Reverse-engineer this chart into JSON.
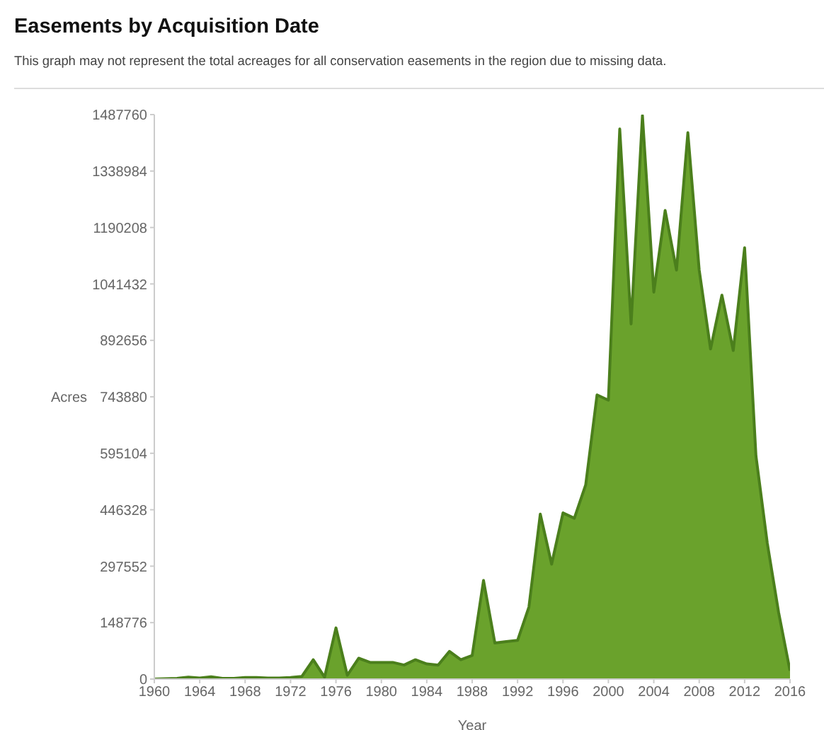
{
  "chart_data": {
    "type": "area",
    "title": "Easements by Acquisition Date",
    "subtitle": "This graph may not represent the total acreages for all conservation easements in the region due to missing data.",
    "xlabel": "Year",
    "ylabel": "Acres",
    "x": [
      1960,
      1961,
      1962,
      1963,
      1964,
      1965,
      1966,
      1967,
      1968,
      1969,
      1970,
      1971,
      1972,
      1973,
      1974,
      1975,
      1976,
      1977,
      1978,
      1979,
      1980,
      1981,
      1982,
      1983,
      1984,
      1985,
      1986,
      1987,
      1988,
      1989,
      1990,
      1991,
      1992,
      1993,
      1994,
      1995,
      1996,
      1997,
      1998,
      1999,
      2000,
      2001,
      2002,
      2003,
      2004,
      2005,
      2006,
      2007,
      2008,
      2009,
      2010,
      2011,
      2012,
      2013,
      2014,
      2015,
      2016
    ],
    "series": [
      {
        "color": "#6aa22c",
        "values": [
          0,
          1000,
          2000,
          5000,
          3000,
          6000,
          2000,
          2000,
          4000,
          4000,
          3000,
          3000,
          4000,
          7000,
          51000,
          5000,
          135000,
          10000,
          55000,
          44000,
          44000,
          44000,
          37000,
          51000,
          40000,
          37000,
          73000,
          51000,
          62000,
          260000,
          95000,
          99000,
          102000,
          190000,
          435000,
          303000,
          438000,
          424000,
          512000,
          749000,
          735000,
          1450000,
          936000,
          1485000,
          1020000,
          1235000,
          1078000,
          1440000,
          1078000,
          870000,
          1012000,
          866000,
          1137000,
          588000,
          358000,
          175000,
          22000
        ]
      }
    ],
    "xlim": [
      1960,
      2016
    ],
    "xticks": [
      1960,
      1964,
      1968,
      1972,
      1976,
      1980,
      1984,
      1988,
      1992,
      1996,
      2000,
      2004,
      2008,
      2012,
      2016
    ],
    "ylim": [
      0,
      1487760
    ],
    "yticks": [
      0,
      148776,
      297552,
      446328,
      595104,
      743880,
      892656,
      1041432,
      1190208,
      1338984,
      1487760
    ],
    "grid": false,
    "legend": false
  }
}
